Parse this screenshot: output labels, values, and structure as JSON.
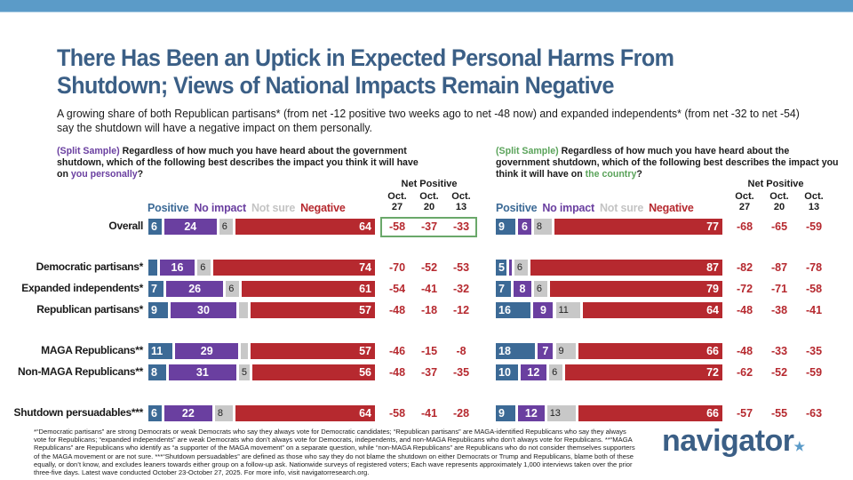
{
  "header": {
    "title": "There Has Been an Uptick in Expected Personal Harms From Shutdown; Views of National Impacts Remain Negative",
    "subtitle": "A growing share of both Republican partisans* (from net -12 positive two weeks ago to net -48 now) and expanded independents* (from net -32 to net -54) say the shutdown will have a negative impact on them personally."
  },
  "colors": {
    "positive": "#3c6a96",
    "no_impact": "#6a3fa0",
    "not_sure": "#c8c8c8",
    "negative": "#b6292f",
    "highlight_box": "#6aa86a",
    "title": "#3b5f86",
    "top_band": "#5b9bc8"
  },
  "legend": {
    "positive": "Positive",
    "no_impact": "No impact",
    "not_sure": "Not sure",
    "negative": "Negative"
  },
  "net_positive_header": {
    "title": "Net Positive",
    "columns": [
      {
        "line1": "Oct.",
        "line2": "27"
      },
      {
        "line1": "Oct.",
        "line2": "20"
      },
      {
        "line1": "Oct.",
        "line2": "13"
      }
    ]
  },
  "questions": {
    "left": {
      "tag": "(Split Sample)",
      "text": " Regardless of how much you have heard about the government shutdown, which of the following best describes the impact you think it will have on ",
      "emphasis": "you personally",
      "end": "?"
    },
    "right": {
      "tag": "(Split Sample)",
      "text": " Regardless of how much you have heard about the government shutdown, which of the following best describes the impact you think it will have on ",
      "emphasis": "the country",
      "end": "?"
    }
  },
  "chart_data": [
    {
      "type": "bar",
      "stacked": true,
      "orientation": "horizontal",
      "title": "Impact on you personally",
      "series_names": [
        "Positive",
        "No impact",
        "Not sure",
        "Negative"
      ],
      "categories": [
        "Overall",
        "Democratic partisans*",
        "Expanded independents*",
        "Republican partisans*",
        "MAGA Republicans**",
        "Non-MAGA Republicans**",
        "Shutdown persuadables***"
      ],
      "series": [
        {
          "name": "Positive",
          "values": [
            6,
            4,
            7,
            9,
            11,
            8,
            6
          ],
          "labels": [
            "6",
            "",
            "7",
            "9",
            "11",
            "8",
            "6"
          ]
        },
        {
          "name": "No impact",
          "values": [
            24,
            16,
            26,
            30,
            29,
            31,
            22
          ],
          "labels": [
            "24",
            "16",
            "26",
            "30",
            "29",
            "31",
            "22"
          ]
        },
        {
          "name": "Not sure",
          "values": [
            6,
            6,
            6,
            4,
            3,
            5,
            8
          ],
          "labels": [
            "6",
            "6",
            "6",
            "",
            "",
            "5",
            "8"
          ]
        },
        {
          "name": "Negative",
          "values": [
            64,
            74,
            61,
            57,
            57,
            56,
            64
          ],
          "labels": [
            "64",
            "74",
            "61",
            "57",
            "57",
            "56",
            "64"
          ]
        }
      ],
      "net_positive": {
        "Oct. 27": [
          -58,
          -70,
          -54,
          -48,
          -46,
          -48,
          -58
        ],
        "Oct. 20": [
          -37,
          -52,
          -41,
          -18,
          -15,
          -37,
          -41
        ],
        "Oct. 13": [
          -33,
          -53,
          -32,
          -12,
          -8,
          -35,
          -28
        ]
      },
      "highlighted_row": "Overall"
    },
    {
      "type": "bar",
      "stacked": true,
      "orientation": "horizontal",
      "title": "Impact on the country",
      "series_names": [
        "Positive",
        "No impact",
        "Not sure",
        "Negative"
      ],
      "categories": [
        "Overall",
        "Democratic partisans*",
        "Expanded independents*",
        "Republican partisans*",
        "MAGA Republicans**",
        "Non-MAGA Republicans**",
        "Shutdown persuadables***"
      ],
      "series": [
        {
          "name": "Positive",
          "values": [
            9,
            5,
            7,
            16,
            18,
            10,
            9
          ],
          "labels": [
            "9",
            "5",
            "7",
            "16",
            "18",
            "10",
            "9"
          ]
        },
        {
          "name": "No impact",
          "values": [
            6,
            1,
            8,
            9,
            7,
            12,
            12
          ],
          "labels": [
            "6",
            "",
            "8",
            "9",
            "7",
            "12",
            "12"
          ]
        },
        {
          "name": "Not sure",
          "values": [
            8,
            6,
            6,
            11,
            9,
            6,
            13
          ],
          "labels": [
            "8",
            "6",
            "6",
            "11",
            "9",
            "6",
            "13"
          ]
        },
        {
          "name": "Negative",
          "values": [
            77,
            87,
            79,
            64,
            66,
            72,
            66
          ],
          "labels": [
            "77",
            "87",
            "79",
            "64",
            "66",
            "72",
            "66"
          ]
        }
      ],
      "net_positive": {
        "Oct. 27": [
          -68,
          -82,
          -72,
          -48,
          -48,
          -62,
          -57
        ],
        "Oct. 20": [
          -65,
          -87,
          -71,
          -38,
          -33,
          -52,
          -55
        ],
        "Oct. 13": [
          -59,
          -78,
          -58,
          -41,
          -35,
          -59,
          -63
        ]
      }
    }
  ],
  "footnote": "*“Democratic partisans” are strong Democrats or weak Democrats who say they always vote for Democratic candidates; “Republican partisans” are MAGA-identified Republicans who say they always vote for Republicans; “expanded independents” are weak Democrats who don’t always vote for Democrats, independents, and non-MAGA Republicans who don’t always vote for Republicans. **“MAGA Republicans” are Republicans who identify as “a supporter of the MAGA movement” on a separate question, while “non-MAGA Republicans” are Republicans who do not consider themselves supporters of the MAGA movement or are not sure. ***“Shutdown persuadables” are defined as those who say they do not blame the shutdown on either Democrats or Trump and Republicans, blame both of these equally, or don’t know, and excludes leaners towards either group on a follow-up ask. Nationwide surveys of registered voters; Each wave represents approximately 1,000 interviews taken over the prior three-five days. Latest wave conducted October 23-October 27, 2025. For more info, visit navigatorresearch.org.",
  "logo": {
    "text": "navigator",
    "dot": "★"
  }
}
